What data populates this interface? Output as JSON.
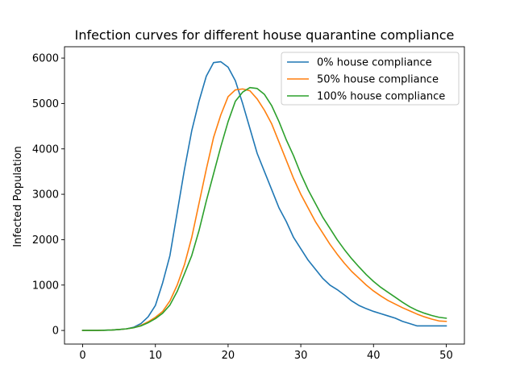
{
  "chart_data": {
    "type": "line",
    "title": "Infection curves for different house quarantine compliance",
    "xlabel": "",
    "ylabel": "Infected Population",
    "xlim": [
      -2.5,
      52.5
    ],
    "ylim": [
      -300,
      6250
    ],
    "xticks": [
      0,
      10,
      20,
      30,
      40,
      50
    ],
    "yticks": [
      0,
      1000,
      2000,
      3000,
      4000,
      5000,
      6000
    ],
    "grid": false,
    "legend_position": "top-right",
    "x": [
      0,
      1,
      2,
      3,
      4,
      5,
      6,
      7,
      8,
      9,
      10,
      11,
      12,
      13,
      14,
      15,
      16,
      17,
      18,
      19,
      20,
      21,
      22,
      23,
      24,
      25,
      26,
      27,
      28,
      29,
      30,
      31,
      32,
      33,
      34,
      35,
      36,
      37,
      38,
      39,
      40,
      41,
      42,
      43,
      44,
      45,
      46,
      47,
      48,
      49,
      50
    ],
    "series": [
      {
        "name": "0% house compliance",
        "color": "#1f77b4",
        "values": [
          0,
          0,
          0,
          5,
          10,
          20,
          35,
          70,
          150,
          300,
          550,
          1050,
          1650,
          2600,
          3550,
          4400,
          5050,
          5600,
          5900,
          5920,
          5800,
          5500,
          5000,
          4450,
          3900,
          3500,
          3100,
          2700,
          2400,
          2050,
          1800,
          1550,
          1350,
          1150,
          1000,
          900,
          780,
          650,
          550,
          480,
          420,
          370,
          320,
          270,
          200,
          150,
          100,
          100,
          100,
          100,
          100
        ]
      },
      {
        "name": "50% house compliance",
        "color": "#ff7f0e",
        "values": [
          0,
          0,
          0,
          5,
          10,
          20,
          35,
          60,
          110,
          190,
          290,
          420,
          650,
          1000,
          1450,
          2050,
          2800,
          3550,
          4250,
          4750,
          5150,
          5300,
          5320,
          5280,
          5100,
          4850,
          4550,
          4150,
          3750,
          3350,
          3000,
          2700,
          2400,
          2150,
          1900,
          1680,
          1480,
          1300,
          1150,
          1000,
          870,
          760,
          660,
          580,
          500,
          430,
          360,
          300,
          250,
          210,
          200
        ]
      },
      {
        "name": "100% house compliance",
        "color": "#2ca02c",
        "values": [
          0,
          0,
          0,
          5,
          10,
          20,
          35,
          60,
          100,
          170,
          260,
          380,
          560,
          860,
          1250,
          1650,
          2200,
          2850,
          3450,
          4050,
          4600,
          5050,
          5250,
          5350,
          5330,
          5200,
          4950,
          4600,
          4200,
          3850,
          3450,
          3100,
          2800,
          2500,
          2250,
          2000,
          1780,
          1580,
          1400,
          1230,
          1080,
          950,
          840,
          730,
          620,
          520,
          440,
          380,
          330,
          290,
          270
        ]
      }
    ]
  }
}
